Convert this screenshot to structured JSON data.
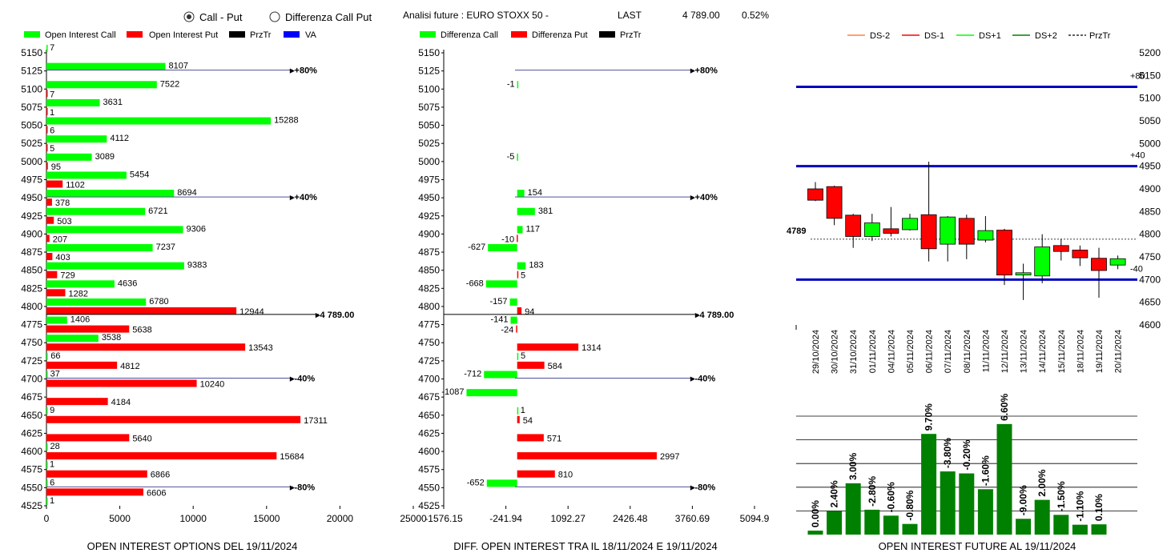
{
  "controls": {
    "radio_options": [
      {
        "label": "Call - Put",
        "selected": true
      },
      {
        "label": "Differenza Call Put",
        "selected": false
      }
    ]
  },
  "header": {
    "title": "Analisi future : EURO STOXX 50 -",
    "last_label": "LAST",
    "last_value": "4 789.00",
    "change": "0.52%"
  },
  "colors": {
    "call": "#00ff00",
    "put": "#ff0000",
    "prztr": "#000000",
    "va": "#0000ff",
    "level_line": "#5050a0",
    "future_bar": "#008000",
    "band": "#0000c0"
  },
  "chart_data": [
    {
      "type": "bar",
      "orientation": "horizontal",
      "title": "OPEN INTEREST OPTIONS DEL 19/11/2024",
      "legend": [
        "Open Interest Call",
        "Open Interest Put",
        "PrzTr",
        "VA"
      ],
      "categories": [
        "5150",
        "5125",
        "5100",
        "5075",
        "5050",
        "5025",
        "5000",
        "4975",
        "4950",
        "4925",
        "4900",
        "4875",
        "4850",
        "4825",
        "4800",
        "4775",
        "4750",
        "4725",
        "4700",
        "4675",
        "4650",
        "4625",
        "4600",
        "4575",
        "4550",
        "4525"
      ],
      "series": [
        {
          "name": "Open Interest Call",
          "values": [
            7,
            8107,
            7522,
            3631,
            15288,
            4112,
            3089,
            5454,
            8694,
            6721,
            9306,
            7237,
            9383,
            4636,
            6780,
            1406,
            3538,
            66,
            37,
            0,
            9,
            0,
            28,
            1,
            6,
            1
          ]
        },
        {
          "name": "Open Interest Put",
          "values": [
            0,
            0,
            7,
            1,
            6,
            5,
            95,
            1102,
            378,
            503,
            207,
            403,
            729,
            1282,
            12944,
            5638,
            13543,
            4812,
            10240,
            4184,
            17311,
            5640,
            15684,
            6866,
            6606,
            0
          ]
        }
      ],
      "call_labels": [
        "7",
        "8107",
        "7522",
        "3631",
        "15288",
        "4112",
        "3089",
        "5454",
        "8694",
        "6721",
        "9306",
        "7237",
        "9383",
        "4636",
        "6780",
        "1406",
        "3538",
        "66",
        "37",
        "",
        "9",
        "",
        "28",
        "1",
        "6",
        "1"
      ],
      "put_labels": [
        "",
        "",
        "7",
        "1",
        "6",
        "5",
        "95",
        "1102",
        "378",
        "503",
        "207",
        "403",
        "729",
        "1282",
        "12944",
        "5638",
        "13543",
        "4812",
        "10240",
        "4184",
        "17311",
        "5640",
        "15684",
        "6866",
        "6606",
        ""
      ],
      "xlim": [
        0,
        25000
      ],
      "xticks": [
        "0",
        "5000",
        "10000",
        "15000",
        "20000",
        "25000"
      ],
      "level_lines": [
        {
          "strike": "5125",
          "label": "+80%"
        },
        {
          "strike": "4950",
          "label": "+40%"
        },
        {
          "strike": "4700",
          "label": "-40%"
        },
        {
          "strike": "4550",
          "label": "-80%"
        }
      ],
      "prztr": {
        "strike_value": 4789,
        "label": "4 789.00"
      }
    },
    {
      "type": "bar",
      "orientation": "horizontal",
      "title": "DIFF. OPEN INTEREST TRA IL 18/11/2024 E 19/11/2024",
      "legend": [
        "Differenza Call",
        "Differenza Put",
        "PrzTr"
      ],
      "categories": [
        "5150",
        "5125",
        "5100",
        "5075",
        "5050",
        "5025",
        "5000",
        "4975",
        "4950",
        "4925",
        "4900",
        "4875",
        "4850",
        "4825",
        "4800",
        "4775",
        "4750",
        "4725",
        "4700",
        "4675",
        "4650",
        "4625",
        "4600",
        "4575",
        "4550",
        "4525"
      ],
      "series": [
        {
          "name": "Differenza Call",
          "values": [
            0,
            0,
            -1,
            0,
            0,
            0,
            -5,
            0,
            154,
            381,
            117,
            -627,
            183,
            -668,
            -157,
            -141,
            0,
            5,
            -712,
            -1087,
            1,
            0,
            0,
            0,
            -652,
            0
          ]
        },
        {
          "name": "Differenza Put",
          "values": [
            0,
            0,
            0,
            0,
            0,
            0,
            0,
            0,
            0,
            0,
            -10,
            0,
            5,
            0,
            94,
            -24,
            1314,
            584,
            0,
            0,
            54,
            571,
            2997,
            810,
            0,
            0
          ]
        }
      ],
      "call_labels": [
        "",
        "",
        "-1",
        "",
        "",
        "",
        "-5",
        "",
        "154",
        "381",
        "117",
        "-627",
        "183",
        "-668",
        "-157",
        "-141",
        "",
        "5",
        "-712",
        "-1087",
        "1",
        "",
        "",
        "",
        "-652",
        ""
      ],
      "put_labels": [
        "",
        "",
        "",
        "",
        "",
        "",
        "",
        "",
        "",
        "",
        "-10",
        "",
        "5",
        "",
        "94",
        "-24",
        "1314",
        "584",
        "",
        "",
        "54",
        "571",
        "2997",
        "810",
        "",
        ""
      ],
      "xlim": [
        -1576.15,
        5094.9
      ],
      "xticks": [
        "-1576.15",
        "-241.94",
        "1092.27",
        "2426.48",
        "3760.69",
        "5094.9"
      ],
      "level_lines": [
        {
          "strike": "5125",
          "label": "+80%"
        },
        {
          "strike": "4950",
          "label": "+40%"
        },
        {
          "strike": "4700",
          "label": "-40%"
        },
        {
          "strike": "4550",
          "label": "-80%"
        }
      ],
      "prztr": {
        "strike_value": 4789,
        "label": "4 789.00"
      }
    },
    {
      "type": "candlestick",
      "legend": [
        "DS-2",
        "DS-1",
        "DS+1",
        "DS+2",
        "PrzTr"
      ],
      "legend_colors": [
        "#ff8040",
        "#ff0000",
        "#00ff00",
        "#008000",
        "#000000"
      ],
      "dates": [
        "29/10/2024",
        "30/10/2024",
        "31/10/2024",
        "01/11/2024",
        "04/11/2024",
        "05/11/2024",
        "06/11/2024",
        "07/11/2024",
        "08/11/2024",
        "11/11/2024",
        "12/11/2024",
        "13/11/2024",
        "14/11/2024",
        "15/11/2024",
        "18/11/2024",
        "19/11/2024",
        "20/11/2024"
      ],
      "candles": [
        {
          "open": 4900,
          "close": 4875,
          "high": 4915,
          "low": 4873
        },
        {
          "open": 4905,
          "close": 4835,
          "high": 4907,
          "low": 4820
        },
        {
          "open": 4842,
          "close": 4795,
          "high": 4845,
          "low": 4770
        },
        {
          "open": 4795,
          "close": 4825,
          "high": 4845,
          "low": 4785
        },
        {
          "open": 4812,
          "close": 4802,
          "high": 4860,
          "low": 4795
        },
        {
          "open": 4810,
          "close": 4835,
          "high": 4845,
          "low": 4808
        },
        {
          "open": 4843,
          "close": 4768,
          "high": 4960,
          "low": 4740
        },
        {
          "open": 4778,
          "close": 4838,
          "high": 4840,
          "low": 4740
        },
        {
          "open": 4835,
          "close": 4778,
          "high": 4843,
          "low": 4745
        },
        {
          "open": 4787,
          "close": 4808,
          "high": 4840,
          "low": 4782
        },
        {
          "open": 4809,
          "close": 4710,
          "high": 4812,
          "low": 4688
        },
        {
          "open": 4710,
          "close": 4715,
          "high": 4735,
          "low": 4655
        },
        {
          "open": 4708,
          "close": 4772,
          "high": 4800,
          "low": 4692
        },
        {
          "open": 4775,
          "close": 4762,
          "high": 4790,
          "low": 4742
        },
        {
          "open": 4765,
          "close": 4748,
          "high": 4775,
          "low": 4730
        },
        {
          "open": 4747,
          "close": 4720,
          "high": 4770,
          "low": 4660
        },
        {
          "open": 4732,
          "close": 4746,
          "high": 4753,
          "low": 4723
        }
      ],
      "ylim": [
        4600,
        5200
      ],
      "yticks": [
        "4600",
        "4650",
        "4700",
        "4750",
        "4800",
        "4850",
        "4900",
        "4950",
        "5000",
        "5050",
        "5100",
        "5150",
        "5200"
      ],
      "bands": [
        {
          "value": 5125,
          "label": "+80"
        },
        {
          "value": 4950,
          "label": "+40"
        },
        {
          "value": 4700,
          "label": "-40"
        }
      ],
      "prztr": {
        "value": 4789,
        "label": "4789"
      }
    },
    {
      "type": "bar",
      "title": "OPEN INTEREST FUTURE AL 19/11/2024",
      "values": [
        1.0,
        6.0,
        13.0,
        6.3,
        4.8,
        2.7,
        25.5,
        16.0,
        15.5,
        11.5,
        28.0,
        4.0,
        8.8,
        5.0,
        2.5,
        2.6
      ],
      "labels": [
        "0.00%",
        "2.40%",
        "3.00%",
        "-2.80%",
        "-0.60%",
        "-0.80%",
        "9.70%",
        "-3.80%",
        "-0.20%",
        "-1.60%",
        "6.60%",
        "-9.00%",
        "2.00%",
        "-1.50%",
        "-1.10%",
        "0.10%"
      ],
      "gridlines": [
        30,
        24,
        18,
        12,
        6
      ],
      "ylim": [
        0,
        30
      ]
    }
  ]
}
